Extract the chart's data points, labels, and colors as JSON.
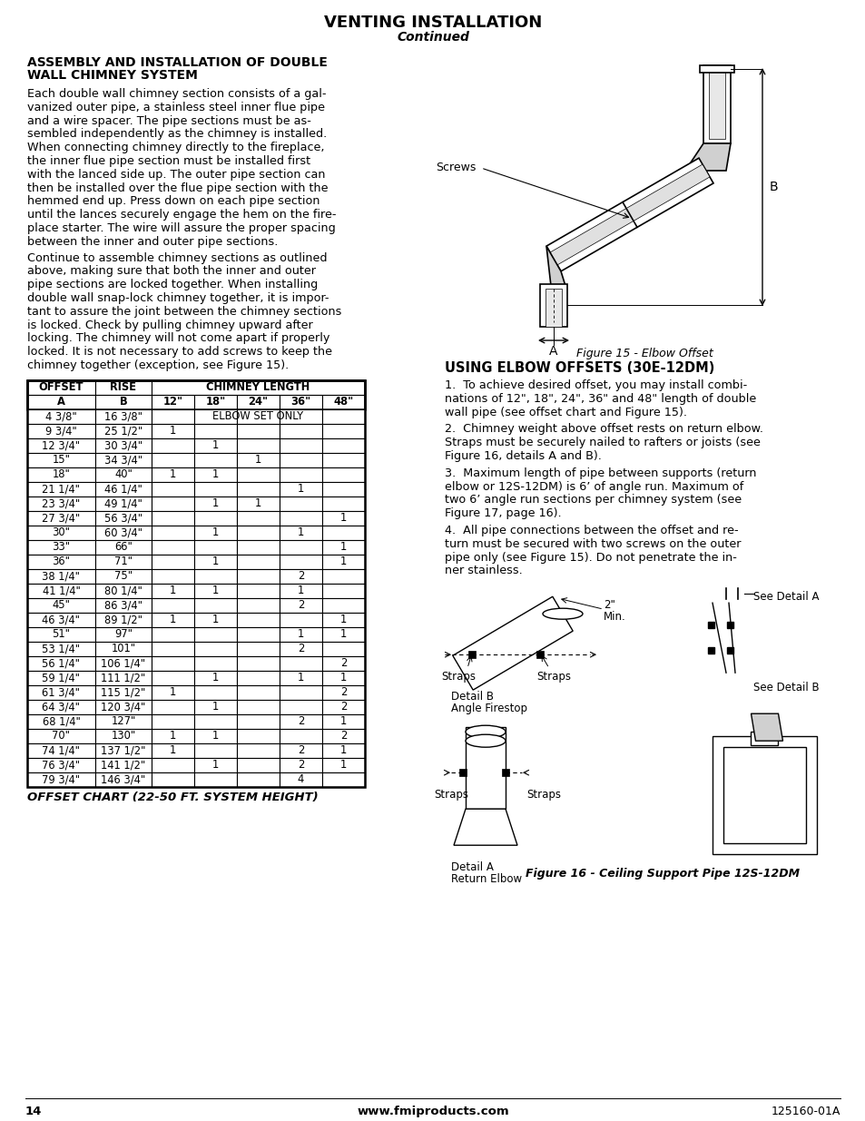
{
  "title": "VENTING INSTALLATION",
  "subtitle": "Continued",
  "sec1_title_line1": "ASSEMBLY AND INSTALLATION OF DOUBLE",
  "sec1_title_line2": "WALL CHIMNEY SYSTEM",
  "sec1_para1": [
    "Each double wall chimney section consists of a gal-",
    "vanized outer pipe, a stainless steel inner flue pipe",
    "and a wire spacer. The pipe sections must be as-",
    "sembled independently as the chimney is installed.",
    "When connecting chimney directly to the fireplace,",
    "the inner flue pipe section must be installed first",
    "with the lanced side up. The outer pipe section can",
    "then be installed over the flue pipe section with the",
    "hemmed end up. Press down on each pipe section",
    "until the lances securely engage the hem on the fire-",
    "place starter. The wire will assure the proper spacing",
    "between the inner and outer pipe sections."
  ],
  "sec1_para2": [
    "Continue to assemble chimney sections as outlined",
    "above, making sure that both the inner and outer",
    "pipe sections are locked together. When installing",
    "double wall snap-lock chimney together, it is impor-",
    "tant to assure the joint between the chimney sections",
    "is locked. Check by pulling chimney upward after",
    "locking. The chimney will not come apart if properly",
    "locked. It is not necessary to add screws to keep the",
    "chimney together (exception, see Figure 15)."
  ],
  "fig15_caption": "Figure 15 - Elbow Offset",
  "sec2_title": "USING ELBOW OFFSETS (30E-12DM)",
  "sec2_para1": [
    "1.  To achieve desired offset, you may install combi-",
    "nations of 12\", 18\", 24\", 36\" and 48\" length of double",
    "wall pipe (see offset chart and Figure 15)."
  ],
  "sec2_para2": [
    "2.  Chimney weight above offset rests on return elbow.",
    "Straps must be securely nailed to rafters or joists (see",
    "Figure 16, details A and B)."
  ],
  "sec2_para3": [
    "3.  Maximum length of pipe between supports (return",
    "elbow or 12S-12DM) is 6’ of angle run. Maximum of",
    "two 6’ angle run sections per chimney system (see",
    "Figure 17, page 16)."
  ],
  "sec2_para4": [
    "4.  All pipe connections between the offset and re-",
    "turn must be secured with two screws on the outer",
    "pipe only (see Figure 15). Do not penetrate the in-",
    "ner stainless."
  ],
  "fig16_caption": "Figure 16 - Ceiling Support Pipe 12S-12DM",
  "table_data": [
    [
      "4 3/8\"",
      "16 3/8\"",
      "",
      "",
      "",
      "",
      ""
    ],
    [
      "9 3/4\"",
      "25 1/2\"",
      "1",
      "",
      "",
      "",
      ""
    ],
    [
      "12 3/4\"",
      "30 3/4\"",
      "",
      "1",
      "",
      "",
      ""
    ],
    [
      "15\"",
      "34 3/4\"",
      "",
      "",
      "1",
      "",
      ""
    ],
    [
      "18\"",
      "40\"",
      "1",
      "1",
      "",
      "",
      ""
    ],
    [
      "21 1/4\"",
      "46 1/4\"",
      "",
      "",
      "",
      "1",
      ""
    ],
    [
      "23 3/4\"",
      "49 1/4\"",
      "",
      "1",
      "1",
      "",
      ""
    ],
    [
      "27 3/4\"",
      "56 3/4\"",
      "",
      "",
      "",
      "",
      "1"
    ],
    [
      "30\"",
      "60 3/4\"",
      "",
      "1",
      "",
      "1",
      ""
    ],
    [
      "33\"",
      "66\"",
      "",
      "",
      "",
      "",
      "1"
    ],
    [
      "36\"",
      "71\"",
      "",
      "1",
      "",
      "",
      "1"
    ],
    [
      "38 1/4\"",
      "75\"",
      "",
      "",
      "",
      "2",
      ""
    ],
    [
      "41 1/4\"",
      "80 1/4\"",
      "1",
      "1",
      "",
      "1",
      ""
    ],
    [
      "45\"",
      "86 3/4\"",
      "",
      "",
      "",
      "2",
      ""
    ],
    [
      "46 3/4\"",
      "89 1/2\"",
      "1",
      "1",
      "",
      "",
      "1"
    ],
    [
      "51\"",
      "97\"",
      "",
      "",
      "",
      "1",
      "1"
    ],
    [
      "53 1/4\"",
      "101\"",
      "",
      "",
      "",
      "2",
      ""
    ],
    [
      "56 1/4\"",
      "106 1/4\"",
      "",
      "",
      "",
      "",
      "2"
    ],
    [
      "59 1/4\"",
      "111 1/2\"",
      "",
      "1",
      "",
      "1",
      "1"
    ],
    [
      "61 3/4\"",
      "115 1/2\"",
      "1",
      "",
      "",
      "",
      "2"
    ],
    [
      "64 3/4\"",
      "120 3/4\"",
      "",
      "1",
      "",
      "",
      "2"
    ],
    [
      "68 1/4\"",
      "127\"",
      "",
      "",
      "",
      "2",
      "1"
    ],
    [
      "70\"",
      "130\"",
      "1",
      "1",
      "",
      "",
      "2"
    ],
    [
      "74 1/4\"",
      "137 1/2\"",
      "1",
      "",
      "",
      "2",
      "1"
    ],
    [
      "76 3/4\"",
      "141 1/2\"",
      "",
      "1",
      "",
      "2",
      "1"
    ],
    [
      "79 3/4\"",
      "146 3/4\"",
      "",
      "",
      "",
      "4",
      ""
    ]
  ],
  "table_caption": "OFFSET CHART (22-50 FT. SYSTEM HEIGHT)",
  "footer_page": "14",
  "footer_web": "www.fmiproducts.com",
  "footer_doc": "125160-01A"
}
